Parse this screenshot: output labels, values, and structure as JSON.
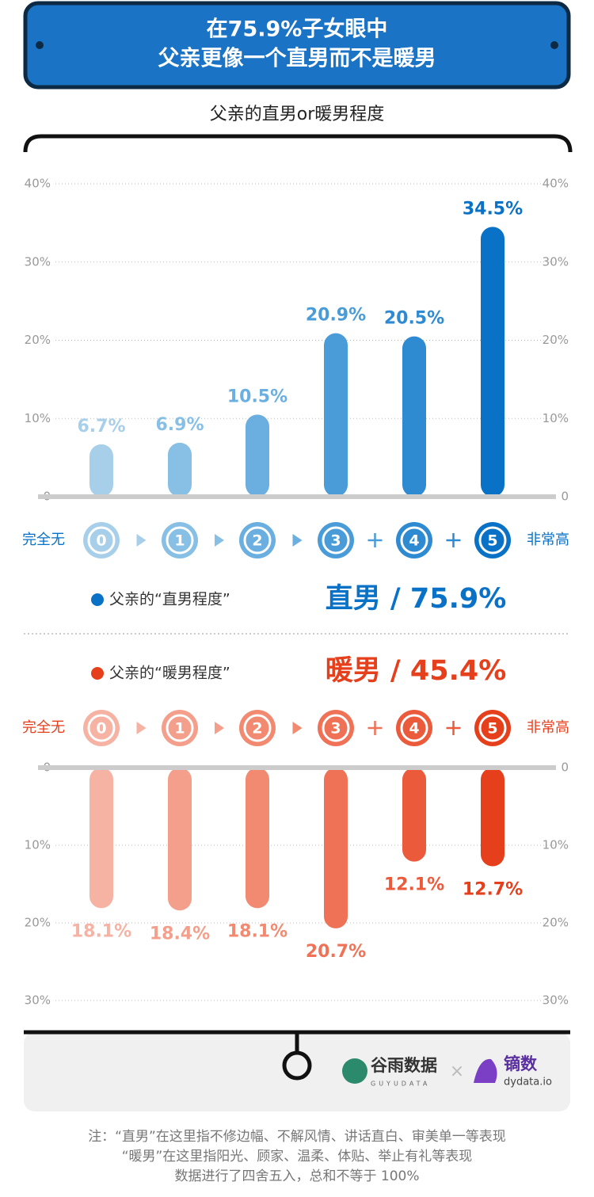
{
  "header": {
    "title_lines": [
      "在75.9%子女眼中",
      "父亲更像一个直男而不是暖男"
    ],
    "subtitle": "父亲的直男or暖男程度"
  },
  "chart_data": [
    {
      "type": "bar",
      "legend": "父亲的“直男程度”",
      "summary": "直男 / 75.9%",
      "scale_low": "完全无",
      "scale_high": "非常高",
      "categories": [
        "0",
        "1",
        "2",
        "3",
        "4",
        "5"
      ],
      "values": [
        6.7,
        6.9,
        10.5,
        20.9,
        20.5,
        34.5
      ],
      "value_labels": [
        "6.7%",
        "6.9%",
        "10.5%",
        "20.9%",
        "20.5%",
        "34.5%"
      ],
      "colors": [
        "#a8cfea",
        "#88bfe5",
        "#6aafe0",
        "#4a9cd8",
        "#2e8ad1",
        "#0a72c6"
      ],
      "ylim": [
        0,
        40
      ],
      "yticks": [
        0,
        {
          "value": 10,
          "label": "10%"
        },
        {
          "value": 20,
          "label": "20%"
        },
        {
          "value": 30,
          "label": "30%"
        },
        {
          "value": 40,
          "label": "40%"
        }
      ],
      "inverted": false,
      "grid": true
    },
    {
      "type": "bar",
      "legend": "父亲的“暖男程度”",
      "summary": "暖男 / 45.4%",
      "scale_low": "完全无",
      "scale_high": "非常高",
      "categories": [
        "0",
        "1",
        "2",
        "3",
        "4",
        "5"
      ],
      "values": [
        18.1,
        18.4,
        18.1,
        20.7,
        12.1,
        12.7
      ],
      "value_labels": [
        "18.1%",
        "18.4%",
        "18.1%",
        "20.7%",
        "12.1%",
        "12.7%"
      ],
      "colors": [
        "#f6b2a3",
        "#f49f8b",
        "#f28a72",
        "#ef7257",
        "#ec5a3c",
        "#e63f1c"
      ],
      "ylim": [
        0,
        30
      ],
      "yticks": [
        0,
        {
          "value": 10,
          "label": "10%"
        },
        {
          "value": 20,
          "label": "20%"
        },
        {
          "value": 30,
          "label": "30%"
        }
      ],
      "inverted": true,
      "grid": true
    }
  ],
  "footer": {
    "logos": [
      "谷雨数据",
      "GUYUDATA",
      "镝数",
      "dydata.io"
    ],
    "notes": [
      "注：“直男”在这里指不修边幅、不解风情、讲话直白、审美单一等表现",
      "“暖男”在这里指阳光、顾家、温柔、体贴、举止有礼等表现",
      "数据进行了四舍五入，总和不等于 100%"
    ]
  }
}
